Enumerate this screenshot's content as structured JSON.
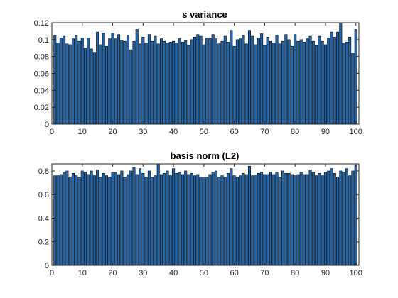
{
  "chart_data": [
    {
      "type": "bar",
      "title": "s variance",
      "xlabel": "",
      "ylabel": "",
      "xlim": [
        0,
        101
      ],
      "ylim": [
        0,
        0.12
      ],
      "xticks": [
        0,
        10,
        20,
        30,
        40,
        50,
        60,
        70,
        80,
        90,
        100
      ],
      "yticks": [
        0,
        0.02,
        0.04,
        0.06,
        0.08,
        0.1,
        0.12
      ],
      "ytick_labels": [
        "0",
        "0.02",
        "0.04",
        "0.06",
        "0.08",
        "0.1",
        "0.12"
      ],
      "grid": false,
      "bar_color": "#2166ac",
      "x": [
        1,
        2,
        3,
        4,
        5,
        6,
        7,
        8,
        9,
        10,
        11,
        12,
        13,
        14,
        15,
        16,
        17,
        18,
        19,
        20,
        21,
        22,
        23,
        24,
        25,
        26,
        27,
        28,
        29,
        30,
        31,
        32,
        33,
        34,
        35,
        36,
        37,
        38,
        39,
        40,
        41,
        42,
        43,
        44,
        45,
        46,
        47,
        48,
        49,
        50,
        51,
        52,
        53,
        54,
        55,
        56,
        57,
        58,
        59,
        60,
        61,
        62,
        63,
        64,
        65,
        66,
        67,
        68,
        69,
        70,
        71,
        72,
        73,
        74,
        75,
        76,
        77,
        78,
        79,
        80,
        81,
        82,
        83,
        84,
        85,
        86,
        87,
        88,
        89,
        90,
        91,
        92,
        93,
        94,
        95,
        96,
        97,
        98,
        99,
        100
      ],
      "values": [
        0.105,
        0.096,
        0.102,
        0.104,
        0.095,
        0.094,
        0.101,
        0.105,
        0.098,
        0.102,
        0.09,
        0.102,
        0.089,
        0.085,
        0.109,
        0.094,
        0.108,
        0.092,
        0.101,
        0.108,
        0.101,
        0.106,
        0.099,
        0.098,
        0.105,
        0.088,
        0.098,
        0.112,
        0.095,
        0.103,
        0.096,
        0.106,
        0.098,
        0.104,
        0.095,
        0.101,
        0.098,
        0.096,
        0.097,
        0.098,
        0.096,
        0.102,
        0.097,
        0.099,
        0.093,
        0.1,
        0.103,
        0.106,
        0.104,
        0.094,
        0.102,
        0.102,
        0.106,
        0.101,
        0.095,
        0.098,
        0.104,
        0.097,
        0.111,
        0.092,
        0.1,
        0.101,
        0.105,
        0.095,
        0.111,
        0.104,
        0.094,
        0.102,
        0.107,
        0.093,
        0.103,
        0.098,
        0.096,
        0.105,
        0.095,
        0.098,
        0.106,
        0.1,
        0.092,
        0.106,
        0.098,
        0.1,
        0.097,
        0.101,
        0.104,
        0.098,
        0.093,
        0.104,
        0.098,
        0.094,
        0.102,
        0.109,
        0.103,
        0.109,
        0.122,
        0.096,
        0.097,
        0.103,
        0.084,
        0.112
      ]
    },
    {
      "type": "bar",
      "title": "basis norm (L2)",
      "xlabel": "",
      "ylabel": "",
      "xlim": [
        0,
        101
      ],
      "ylim": [
        0,
        0.86
      ],
      "xticks": [
        0,
        10,
        20,
        30,
        40,
        50,
        60,
        70,
        80,
        90,
        100
      ],
      "yticks": [
        0,
        0.2,
        0.4,
        0.6,
        0.8
      ],
      "ytick_labels": [
        "0",
        "0.2",
        "0.4",
        "0.6",
        "0.8"
      ],
      "grid": false,
      "bar_color": "#2166ac",
      "x": [
        1,
        2,
        3,
        4,
        5,
        6,
        7,
        8,
        9,
        10,
        11,
        12,
        13,
        14,
        15,
        16,
        17,
        18,
        19,
        20,
        21,
        22,
        23,
        24,
        25,
        26,
        27,
        28,
        29,
        30,
        31,
        32,
        33,
        34,
        35,
        36,
        37,
        38,
        39,
        40,
        41,
        42,
        43,
        44,
        45,
        46,
        47,
        48,
        49,
        50,
        51,
        52,
        53,
        54,
        55,
        56,
        57,
        58,
        59,
        60,
        61,
        62,
        63,
        64,
        65,
        66,
        67,
        68,
        69,
        70,
        71,
        72,
        73,
        74,
        75,
        76,
        77,
        78,
        79,
        80,
        81,
        82,
        83,
        84,
        85,
        86,
        87,
        88,
        89,
        90,
        91,
        92,
        93,
        94,
        95,
        96,
        97,
        98,
        99,
        100
      ],
      "values": [
        0.76,
        0.76,
        0.77,
        0.79,
        0.8,
        0.75,
        0.78,
        0.76,
        0.75,
        0.8,
        0.79,
        0.77,
        0.8,
        0.76,
        0.81,
        0.75,
        0.78,
        0.76,
        0.75,
        0.79,
        0.79,
        0.77,
        0.8,
        0.75,
        0.77,
        0.8,
        0.83,
        0.77,
        0.82,
        0.78,
        0.75,
        0.8,
        0.75,
        0.76,
        0.86,
        0.77,
        0.78,
        0.8,
        0.76,
        0.82,
        0.78,
        0.79,
        0.77,
        0.8,
        0.77,
        0.78,
        0.76,
        0.77,
        0.75,
        0.75,
        0.75,
        0.77,
        0.79,
        0.8,
        0.75,
        0.76,
        0.75,
        0.78,
        0.82,
        0.76,
        0.75,
        0.76,
        0.78,
        0.77,
        0.84,
        0.76,
        0.76,
        0.78,
        0.79,
        0.77,
        0.77,
        0.79,
        0.77,
        0.79,
        0.75,
        0.8,
        0.78,
        0.78,
        0.77,
        0.76,
        0.77,
        0.79,
        0.77,
        0.77,
        0.81,
        0.79,
        0.76,
        0.78,
        0.76,
        0.79,
        0.8,
        0.82,
        0.78,
        0.75,
        0.8,
        0.79,
        0.82,
        0.76,
        0.8,
        0.85
      ]
    }
  ]
}
